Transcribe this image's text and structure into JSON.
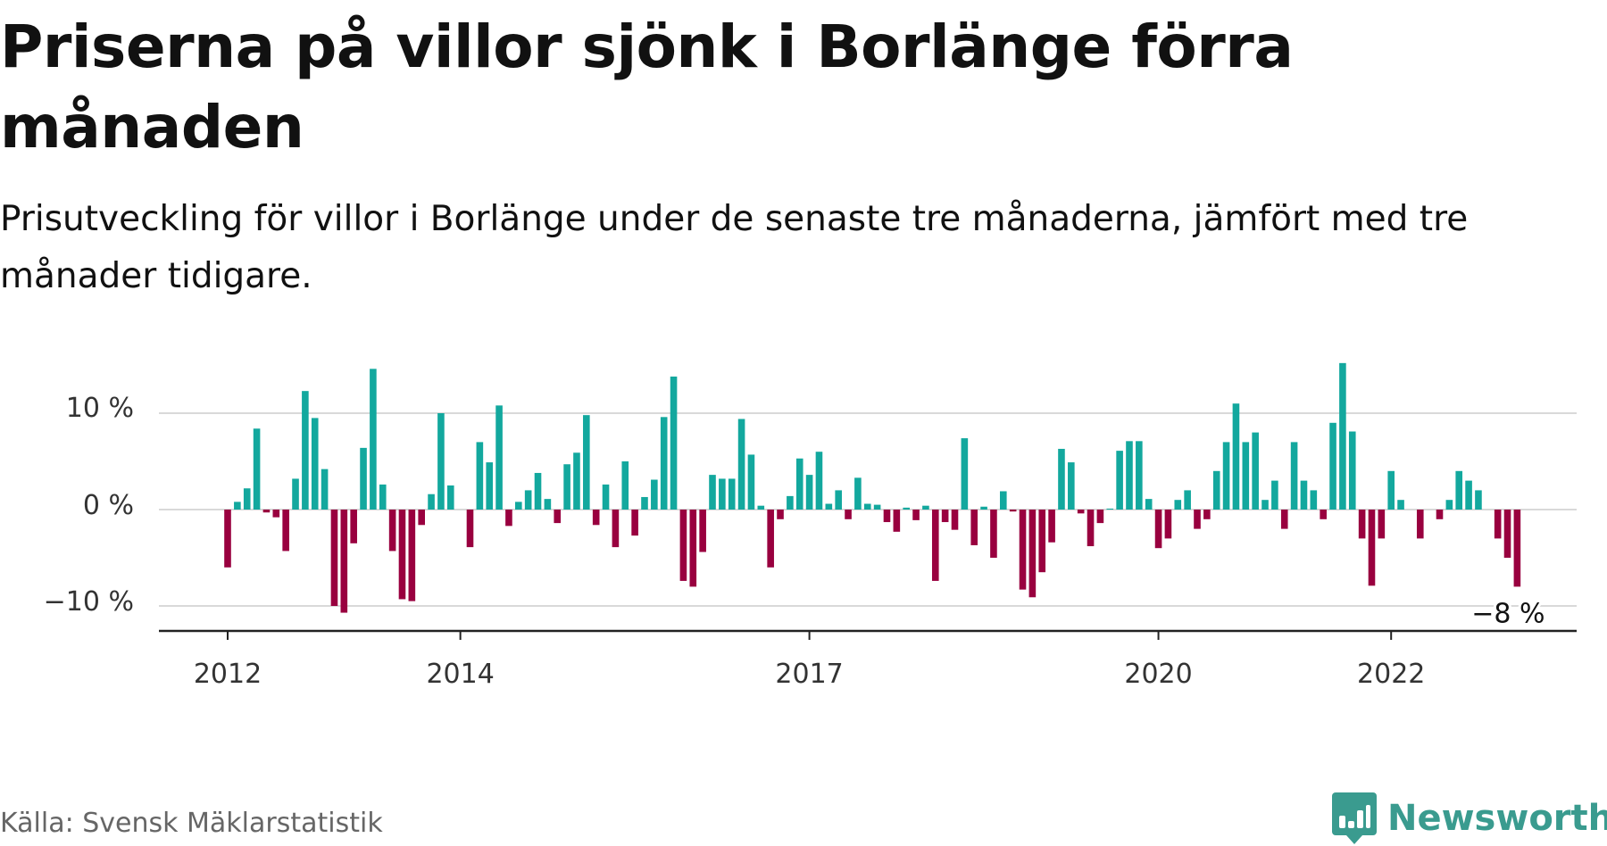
{
  "title": "Priserna på villor sjönk i Borlänge förra månaden",
  "subtitle": "Prisutveckling för villor i Borlänge under de senaste tre månaderna, jämfört med tre månader tidigare.",
  "source": "Källa: Svensk Mäklarstatistik",
  "brand": {
    "name": "Newsworthy",
    "logo_icon": "chart-bubble-icon",
    "color": "#3a9b8f"
  },
  "colors": {
    "positive": "#13a89e",
    "negative": "#99003f",
    "grid": "#d9d9d9",
    "axis": "#222222"
  },
  "chart_data": {
    "type": "bar",
    "title": "Priserna på villor sjönk i Borlänge förra månaden",
    "subtitle": "Prisutveckling för villor i Borlänge under de senaste tre månaderna, jämfört med tre månader tidigare.",
    "xlabel": "",
    "ylabel": "",
    "unit": "%",
    "ylim": [
      -12.5,
      15.5
    ],
    "yticks": [
      -10,
      0,
      10
    ],
    "ytick_labels": [
      "−10 %",
      "0 %",
      "10 %"
    ],
    "grid": true,
    "legend": "none",
    "x_start": "2012-01",
    "x_end": "2023-03",
    "xticks": [
      "2012-01",
      "2014-01",
      "2017-01",
      "2020-01",
      "2022-01"
    ],
    "xtick_labels": [
      "2012",
      "2014",
      "2017",
      "2020",
      "2022"
    ],
    "values": [
      -6,
      0.8,
      2.2,
      8.4,
      -0.3,
      -0.8,
      -4.3,
      3.2,
      12.3,
      9.5,
      4.2,
      -10,
      -10.7,
      -3.5,
      6.4,
      14.6,
      2.6,
      -4.3,
      -9.3,
      -9.5,
      -1.6,
      1.6,
      10,
      2.5,
      0,
      -3.9,
      7,
      4.9,
      10.8,
      -1.7,
      0.8,
      2,
      3.8,
      1.1,
      -1.4,
      4.7,
      5.9,
      9.8,
      -1.6,
      2.6,
      -3.9,
      5,
      -2.7,
      1.3,
      3.1,
      9.6,
      13.8,
      -7.4,
      -8,
      -4.4,
      3.6,
      3.2,
      3.2,
      9.4,
      5.7,
      0.4,
      -6,
      -1,
      1.4,
      5.3,
      3.6,
      6,
      0.6,
      2,
      -1,
      3.3,
      0.6,
      0.5,
      -1.3,
      -2.3,
      0.2,
      -1.1,
      0.4,
      -7.4,
      -1.3,
      -2.1,
      7.4,
      -3.7,
      0.3,
      -5,
      1.9,
      -0.2,
      -8.3,
      -9.1,
      -6.5,
      -3.4,
      6.3,
      4.9,
      -0.4,
      -3.8,
      -1.4,
      0.1,
      6.1,
      7.1,
      7.1,
      1.1,
      -4,
      -3,
      1,
      2,
      -2,
      -1,
      4,
      7,
      11,
      7,
      8,
      1,
      3,
      -2,
      7,
      3,
      2,
      -1,
      9,
      15.2,
      8.1,
      -3,
      -7.9,
      -3,
      4,
      1,
      0,
      -3,
      0,
      -1,
      1,
      4,
      3,
      2,
      0,
      -3,
      -5,
      -8
    ],
    "annotation": {
      "text": "−8 %",
      "target": "last"
    }
  }
}
